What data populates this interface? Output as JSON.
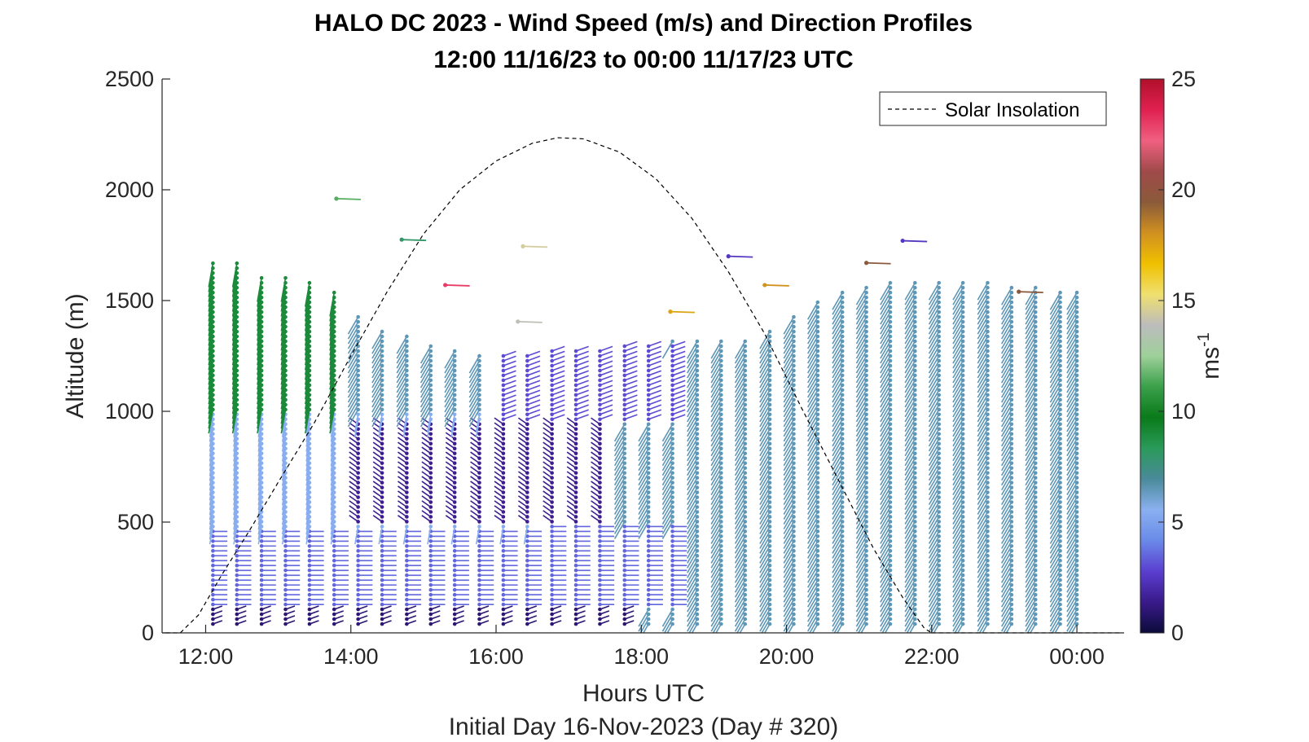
{
  "chart_data": {
    "type": "scatter",
    "title_line1": "HALO DC 2023 - Wind Speed (m/s) and Direction Profiles",
    "title_line2": "12:00 11/16/23 to 00:00 11/17/23  UTC",
    "xlabel": "Hours UTC",
    "subxlabel": "Initial Day 16-Nov-2023 (Day # 320)",
    "ylabel": "Altitude (m)",
    "x_ticks": [
      "12:00",
      "14:00",
      "16:00",
      "18:00",
      "20:00",
      "22:00",
      "00:00"
    ],
    "y_ticks": [
      "0",
      "500",
      "1000",
      "1500",
      "2000",
      "2500"
    ],
    "xlim": [
      11.4,
      24.65
    ],
    "ylim": [
      0,
      2500
    ],
    "grid": false,
    "legend": {
      "entry": "Solar Insolation",
      "placement": "top-right",
      "style": "dashed black line"
    },
    "colorbar": {
      "label": "ms",
      "label_superscript": "-1",
      "ticks": [
        "0",
        "5",
        "10",
        "15",
        "20",
        "25"
      ],
      "range": [
        0,
        25
      ],
      "colors": [
        "#0b0b3a",
        "#3a1a8a",
        "#5a3fd0",
        "#6a8ae8",
        "#8ab0f0",
        "#4a8a9a",
        "#2a9a5a",
        "#0a7a1a",
        "#3aa04a",
        "#9ed09a",
        "#bcbcbc",
        "#f0e070",
        "#f0c000",
        "#d09020",
        "#8a5a3a",
        "#a04a4a",
        "#f06080",
        "#e02050",
        "#b0102a"
      ]
    },
    "solar_insolation_curve": {
      "x": [
        11.65,
        11.9,
        12.2,
        12.6,
        13.0,
        13.5,
        14.0,
        14.5,
        15.0,
        15.5,
        16.0,
        16.5,
        16.85,
        17.2,
        17.7,
        18.2,
        18.7,
        19.2,
        19.7,
        20.2,
        20.7,
        21.2,
        21.6,
        21.9,
        22.0
      ],
      "y": [
        0,
        80,
        250,
        460,
        680,
        950,
        1250,
        1540,
        1800,
        2000,
        2130,
        2210,
        2235,
        2230,
        2170,
        2050,
        1870,
        1630,
        1350,
        1020,
        700,
        380,
        160,
        20,
        0
      ]
    },
    "profile_times_hours": [
      12.1,
      12.43,
      12.77,
      13.1,
      13.43,
      13.77,
      14.1,
      14.43,
      14.77,
      15.1,
      15.43,
      15.77,
      16.1,
      16.43,
      16.77,
      17.1,
      17.43,
      17.77,
      18.1,
      18.43,
      18.77,
      19.1,
      19.43,
      19.77,
      20.1,
      20.43,
      20.77,
      21.1,
      21.43,
      21.77,
      22.1,
      22.43,
      22.77,
      23.1,
      23.43,
      23.77,
      24.0
    ],
    "profile_tops_m": [
      1670,
      1670,
      1610,
      1610,
      1580,
      1540,
      1430,
      1380,
      1350,
      1310,
      1280,
      1260,
      1270,
      1270,
      1280,
      1280,
      1290,
      1300,
      1310,
      1330,
      1330,
      1320,
      1320,
      1380,
      1440,
      1500,
      1540,
      1570,
      1590,
      1600,
      1600,
      1590,
      1580,
      1570,
      1560,
      1540,
      1550
    ],
    "wind_regimes": [
      {
        "alt_range_m": [
          0,
          120
        ],
        "x_range_hours": [
          12.0,
          18.0
        ],
        "speed_ms": 1.0,
        "heading": "toward east-north-east"
      },
      {
        "alt_range_m": [
          120,
          480
        ],
        "x_range_hours": [
          12.0,
          18.5
        ],
        "speed_ms": 3.5,
        "heading": "toward east"
      },
      {
        "alt_range_m": [
          480,
          1000
        ],
        "x_range_hours": [
          12.0,
          16.5
        ],
        "speed_ms": 5.5,
        "heading": "toward south"
      },
      {
        "alt_range_m": [
          500,
          950
        ],
        "x_range_hours": [
          14.0,
          17.5
        ],
        "speed_ms": 1.5,
        "heading": "toward north-west"
      },
      {
        "alt_range_m": [
          950,
          1300
        ],
        "x_range_hours": [
          16.0,
          19.5
        ],
        "speed_ms": 3.0,
        "heading": "toward east-north-east"
      },
      {
        "alt_range_m": [
          1000,
          1700
        ],
        "x_range_hours": [
          12.0,
          14.0
        ],
        "speed_ms": 9.0,
        "heading": "toward south"
      },
      {
        "alt_range_m": [
          0,
          1600
        ],
        "x_range_hours": [
          18.5,
          24.0
        ],
        "speed_ms": 6.5,
        "heading": "toward south-west"
      }
    ],
    "scattered_upper_points": [
      {
        "t": 13.8,
        "alt": 1960,
        "speed_ms": 11.5
      },
      {
        "t": 14.7,
        "alt": 1775,
        "speed_ms": 8.0
      },
      {
        "t": 16.37,
        "alt": 1745,
        "speed_ms": 14.5
      },
      {
        "t": 15.3,
        "alt": 1570,
        "speed_ms": 23.0
      },
      {
        "t": 16.3,
        "alt": 1405,
        "speed_ms": 14.0
      },
      {
        "t": 18.4,
        "alt": 1450,
        "speed_ms": 17.5
      },
      {
        "t": 21.1,
        "alt": 1670,
        "speed_ms": 19.5
      },
      {
        "t": 23.2,
        "alt": 1540,
        "speed_ms": 19.5
      },
      {
        "t": 19.7,
        "alt": 1570,
        "speed_ms": 18.0
      },
      {
        "t": 21.6,
        "alt": 1770,
        "speed_ms": 2.5
      },
      {
        "t": 19.2,
        "alt": 1700,
        "speed_ms": 2.5
      }
    ]
  }
}
